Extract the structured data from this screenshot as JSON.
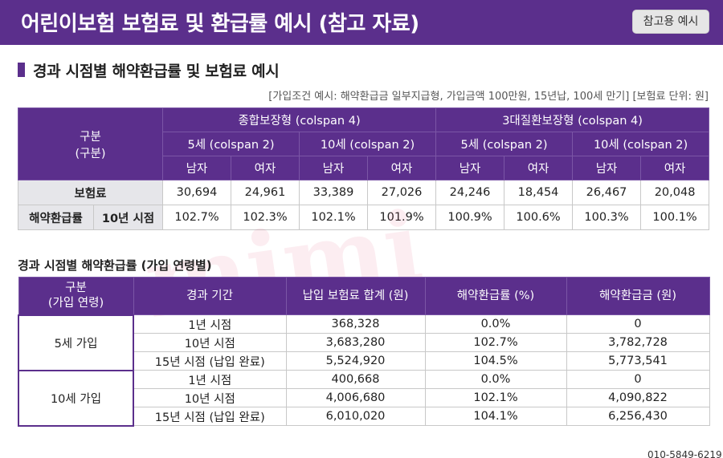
{
  "header": {
    "title": "어린이보험 보험료 및 환급률 예시 (참고 자료)",
    "badge": "참고용 예시"
  },
  "section": {
    "title": "경과 시점별 해약환급률 및 보험료 예시",
    "condition_note": "[가입조건 예시: 해약환급금 일부지급형, 가입금액 100만원, 15년납, 100세 만기] [보험료 단위: 원]"
  },
  "table1": {
    "header_category": "구분",
    "header_category_sub": "(구분)",
    "plan_a": "종합보장형 (colspan 4)",
    "plan_b": "3대질환보장형 (colspan 4)",
    "age_5": "5세 (colspan 2)",
    "age_10": "10세 (colspan 2)",
    "male": "남자",
    "female": "여자",
    "premium_label": "보험료",
    "premiums": [
      "30,694",
      "24,961",
      "33,389",
      "27,026",
      "24,246",
      "18,454",
      "26,467",
      "20,048"
    ],
    "refund_label": "해약환급률",
    "refund_sub": "10년 시점",
    "refunds": [
      "102.7%",
      "102.3%",
      "102.1%",
      "101.9%",
      "100.9%",
      "100.6%",
      "100.3%",
      "100.1%"
    ]
  },
  "table2": {
    "title": "경과 시점별 해약환급률 (가입 연령별)",
    "headers": {
      "category": "구분",
      "category_sub": "(가입 연령)",
      "period": "경과 기간",
      "paid": "납입 보험료 합계 (원)",
      "rate": "해약환급률 (%)",
      "amount": "해약환급금 (원)"
    },
    "groups": [
      {
        "label": "5세 가입",
        "rows": [
          {
            "period": "1년 시점",
            "paid": "368,328",
            "rate": "0.0%",
            "amount": "0"
          },
          {
            "period": "10년 시점",
            "paid": "3,683,280",
            "rate": "102.7%",
            "amount": "3,782,728"
          },
          {
            "period": "15년 시점 (납입 완료)",
            "paid": "5,524,920",
            "rate": "104.5%",
            "amount": "5,773,541"
          }
        ]
      },
      {
        "label": "10세 가입",
        "rows": [
          {
            "period": "1년 시점",
            "paid": "400,668",
            "rate": "0.0%",
            "amount": "0"
          },
          {
            "period": "10년 시점",
            "paid": "4,006,680",
            "rate": "102.1%",
            "amount": "4,090,822"
          },
          {
            "period": "15년 시점 (납입 완료)",
            "paid": "6,010,020",
            "rate": "104.1%",
            "amount": "6,256,430"
          }
        ]
      }
    ]
  },
  "watermark": "mimi",
  "footer": {
    "phone": "010-5849-6219"
  }
}
